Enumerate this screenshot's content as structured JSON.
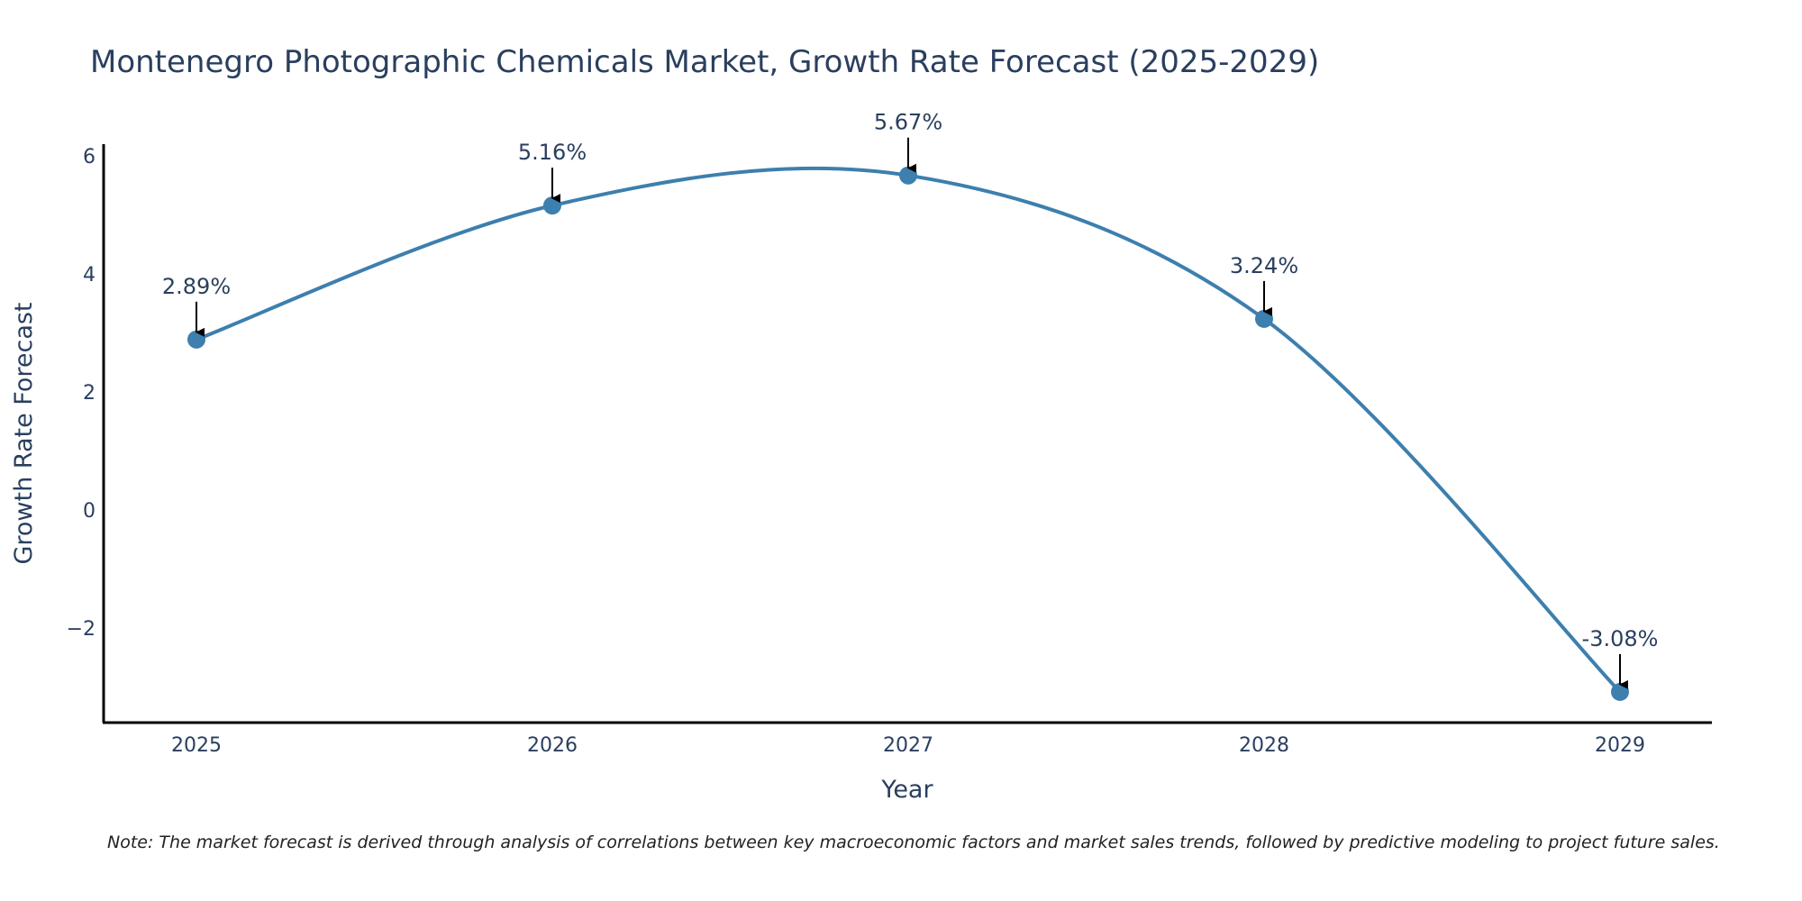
{
  "chart_data": {
    "type": "line",
    "title": "Montenegro Photographic Chemicals Market, Growth Rate Forecast (2025-2029)",
    "xlabel": "Year",
    "ylabel": "Growth Rate Forecast",
    "categories": [
      "2025",
      "2026",
      "2027",
      "2028",
      "2029"
    ],
    "series": [
      {
        "name": "Growth Rate Forecast",
        "values": [
          2.89,
          5.16,
          5.67,
          3.24,
          -3.08
        ],
        "labels": [
          "2.89%",
          "5.16%",
          "5.67%",
          "3.24%",
          "-3.08%"
        ]
      }
    ],
    "yticks": [
      -2,
      0,
      2,
      4,
      6
    ],
    "ytick_labels": [
      "−2",
      "0",
      "2",
      "4",
      "6"
    ],
    "ylim": [
      -3.6,
      6.2
    ],
    "grid": false,
    "line_shape": "spline",
    "colors": {
      "line": "#3d7fae",
      "marker": "#3d7fae",
      "arrow": "#000000",
      "axis": "#000000",
      "text": "#2a3f5f"
    },
    "note": "Note: The market forecast is derived through analysis of correlations between key macroeconomic factors and market sales trends, followed by predictive modeling to project future sales."
  }
}
